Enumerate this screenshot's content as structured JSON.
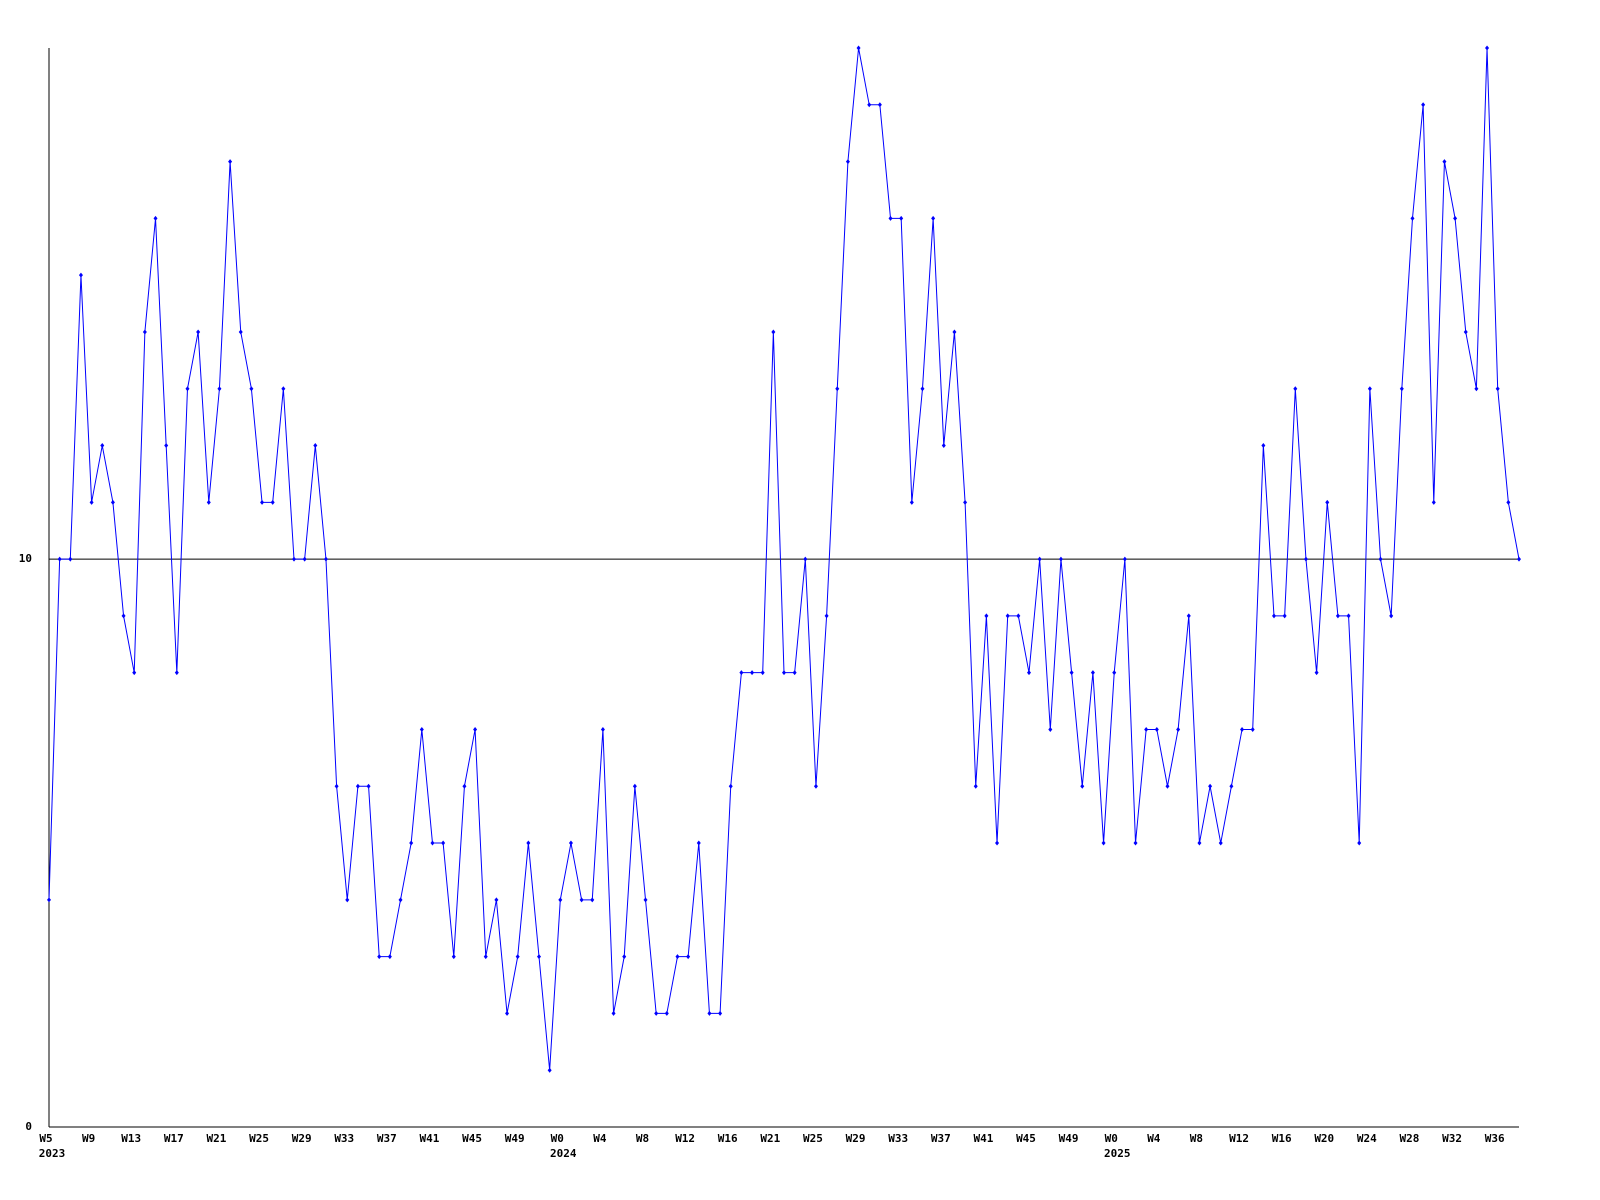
{
  "chart_data": {
    "type": "line",
    "categories": [
      "W5",
      null,
      null,
      null,
      "W9",
      null,
      null,
      null,
      "W13",
      null,
      null,
      null,
      "W17",
      null,
      null,
      null,
      "W21",
      null,
      null,
      null,
      "W25",
      null,
      null,
      null,
      "W29",
      null,
      null,
      null,
      "W33",
      null,
      null,
      null,
      "W37",
      null,
      null,
      null,
      "W41",
      null,
      null,
      null,
      "W45",
      null,
      null,
      null,
      "W49",
      null,
      null,
      null,
      "W0",
      null,
      null,
      null,
      "W4",
      null,
      null,
      null,
      "W8",
      null,
      null,
      null,
      "W12",
      null,
      null,
      null,
      "W16",
      null,
      null,
      null,
      "W21",
      null,
      null,
      null,
      "W25",
      null,
      null,
      null,
      "W29",
      null,
      null,
      null,
      "W33",
      null,
      null,
      null,
      "W37",
      null,
      null,
      null,
      "W41",
      null,
      null,
      null,
      "W45",
      null,
      null,
      null,
      "W49",
      null,
      null,
      null,
      "W0",
      null,
      null,
      null,
      "W4",
      null,
      null,
      null,
      "W8",
      null,
      null,
      null,
      "W12",
      null,
      null,
      null,
      "W16",
      null,
      null,
      null,
      "W20",
      null,
      null,
      null,
      "W24",
      null,
      null,
      null,
      "W28",
      null,
      null,
      null,
      "W32",
      null,
      null,
      null,
      "W36",
      null,
      null
    ],
    "years": [
      "2023",
      null,
      null,
      null,
      null,
      null,
      null,
      null,
      null,
      null,
      null,
      null,
      null,
      null,
      null,
      null,
      null,
      null,
      null,
      null,
      null,
      null,
      null,
      null,
      null,
      null,
      null,
      null,
      null,
      null,
      null,
      null,
      null,
      null,
      null,
      null,
      null,
      null,
      null,
      null,
      null,
      null,
      null,
      null,
      null,
      null,
      null,
      null,
      "2024",
      null,
      null,
      null,
      null,
      null,
      null,
      null,
      null,
      null,
      null,
      null,
      null,
      null,
      null,
      null,
      null,
      null,
      null,
      null,
      null,
      null,
      null,
      null,
      null,
      null,
      null,
      null,
      null,
      null,
      null,
      null,
      null,
      null,
      null,
      null,
      null,
      null,
      null,
      null,
      null,
      null,
      null,
      null,
      null,
      null,
      null,
      null,
      null,
      null,
      null,
      null,
      "2025",
      null,
      null,
      null,
      null,
      null,
      null,
      null,
      null,
      null,
      null,
      null,
      null,
      null,
      null,
      null,
      null,
      null,
      null,
      null,
      null,
      null,
      null,
      null,
      null,
      null,
      null,
      null,
      null,
      null,
      null,
      null,
      null,
      null,
      null,
      null,
      null,
      null,
      null
    ],
    "series": [
      {
        "color": "#0000ff",
        "values": [
          4,
          10,
          10,
          15,
          11,
          12,
          11,
          9,
          8,
          14,
          16,
          12,
          8,
          13,
          14,
          11,
          13,
          17,
          14,
          13,
          11,
          11,
          13,
          10,
          10,
          12,
          10,
          6,
          4,
          6,
          6,
          3,
          3,
          4,
          5,
          7,
          5,
          5,
          3,
          6,
          7,
          3,
          4,
          2,
          3,
          5,
          3,
          1,
          4,
          5,
          4,
          4,
          7,
          2,
          3,
          6,
          4,
          2,
          2,
          3,
          3,
          5,
          2,
          2,
          6,
          8,
          8,
          8,
          14,
          8,
          8,
          10,
          6,
          9,
          13,
          17,
          19,
          18,
          18,
          16,
          16,
          11,
          13,
          16,
          12,
          14,
          11,
          6,
          9,
          5,
          9,
          9,
          8,
          10,
          7,
          10,
          8,
          6,
          8,
          5,
          8,
          10,
          5,
          7,
          7,
          6,
          7,
          9,
          5,
          6,
          5,
          6,
          7,
          7,
          12,
          9,
          9,
          13,
          10,
          8,
          11,
          9,
          9,
          5,
          13,
          10,
          9,
          13,
          16,
          18,
          11,
          17,
          16,
          14,
          13,
          19,
          13,
          11,
          10
        ]
      }
    ],
    "ylim": [
      0,
      19
    ],
    "yticks": [
      0,
      10
    ],
    "grid": true
  }
}
